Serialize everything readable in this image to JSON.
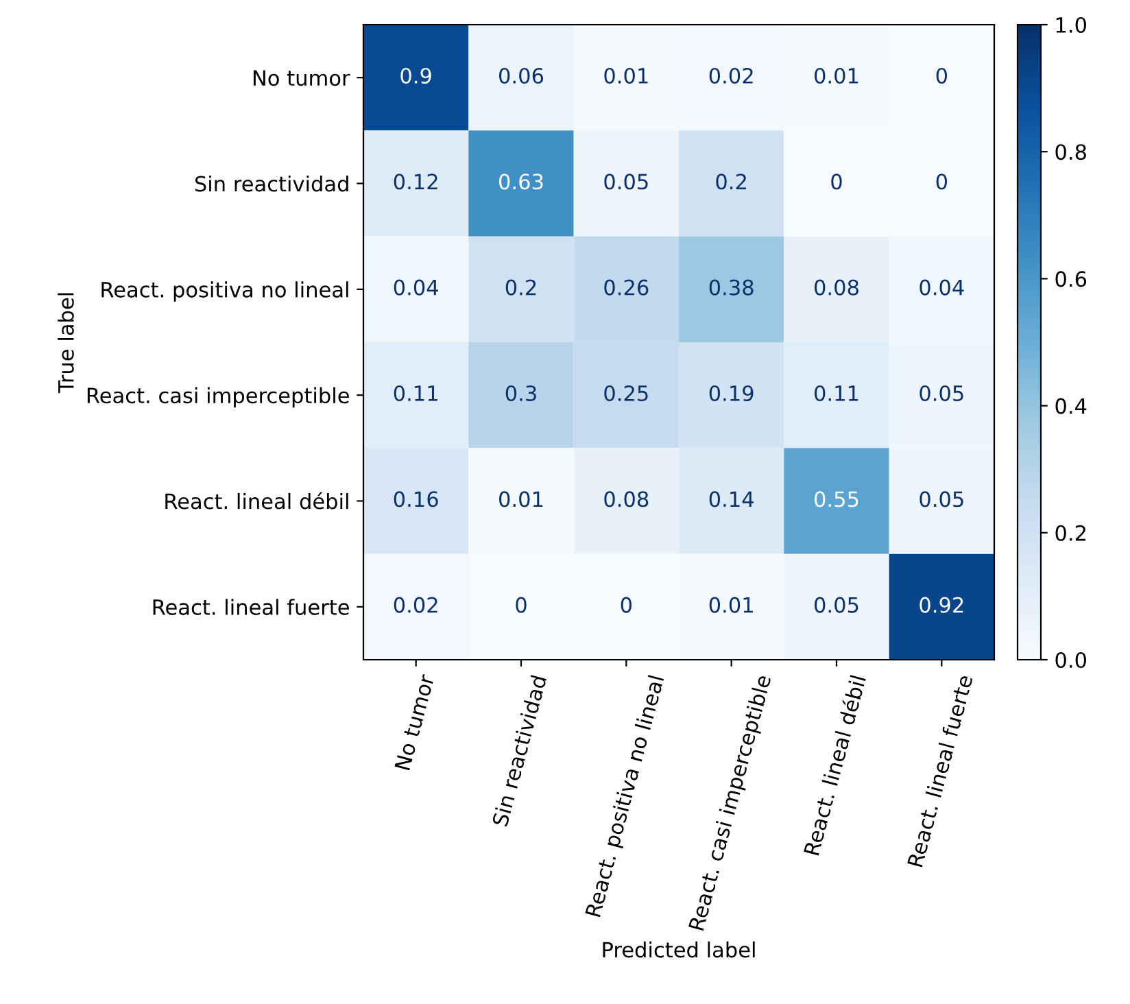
{
  "chart_data": {
    "type": "heatmap",
    "xlabel": "Predicted label",
    "ylabel": "True label",
    "categories": [
      "No tumor",
      "Sin reactividad",
      "React. positiva no lineal",
      "React. casi imperceptible",
      "React. lineal débil",
      "React. lineal fuerte"
    ],
    "y_categories": [
      "No tumor",
      "Sin reactividad",
      "React. positiva no lineal",
      "React. casi imperceptible",
      "React. lineal débil",
      "React. lineal fuerte"
    ],
    "cells": [
      [
        0.9,
        0.06,
        0.01,
        0.02,
        0.01,
        0
      ],
      [
        0.12,
        0.63,
        0.05,
        0.2,
        0,
        0
      ],
      [
        0.04,
        0.2,
        0.26,
        0.38,
        0.08,
        0.04
      ],
      [
        0.11,
        0.3,
        0.25,
        0.19,
        0.11,
        0.05
      ],
      [
        0.16,
        0.01,
        0.08,
        0.14,
        0.55,
        0.05
      ],
      [
        0.02,
        0,
        0,
        0.01,
        0.05,
        0.92
      ]
    ],
    "clim": [
      0,
      1
    ],
    "cticks": [
      {
        "value": 0,
        "label": "0.0"
      },
      0.2,
      0.4,
      0.6,
      0.8,
      {
        "value": 1,
        "label": "1.0"
      }
    ],
    "data_labels": true,
    "grid": false
  }
}
